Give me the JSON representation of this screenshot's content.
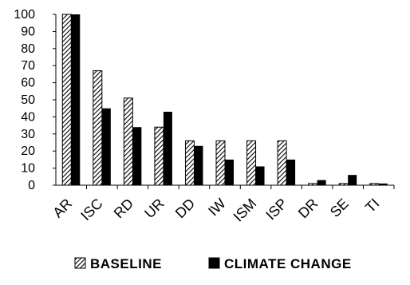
{
  "chart_data": {
    "type": "bar",
    "title": "",
    "xlabel": "",
    "ylabel": "",
    "ylim": [
      0,
      100
    ],
    "yticks": [
      0,
      10,
      20,
      30,
      40,
      50,
      60,
      70,
      80,
      90,
      100
    ],
    "grid": false,
    "legend_position": "bottom",
    "categories": [
      "AR",
      "ISC",
      "RD",
      "UR",
      "DD",
      "IW",
      "ISM",
      "ISP",
      "DR",
      "SE",
      "TI"
    ],
    "series": [
      {
        "name": "BASELINE",
        "pattern": "diagonal-hatch",
        "color": "#000000",
        "values": [
          100,
          67,
          51,
          34,
          26,
          26,
          26,
          26,
          1,
          1,
          1
        ]
      },
      {
        "name": "CLIMATE CHANGE",
        "pattern": "solid",
        "color": "#000000",
        "values": [
          100,
          45,
          34,
          43,
          23,
          15,
          11,
          15,
          3,
          6,
          1
        ]
      }
    ]
  }
}
